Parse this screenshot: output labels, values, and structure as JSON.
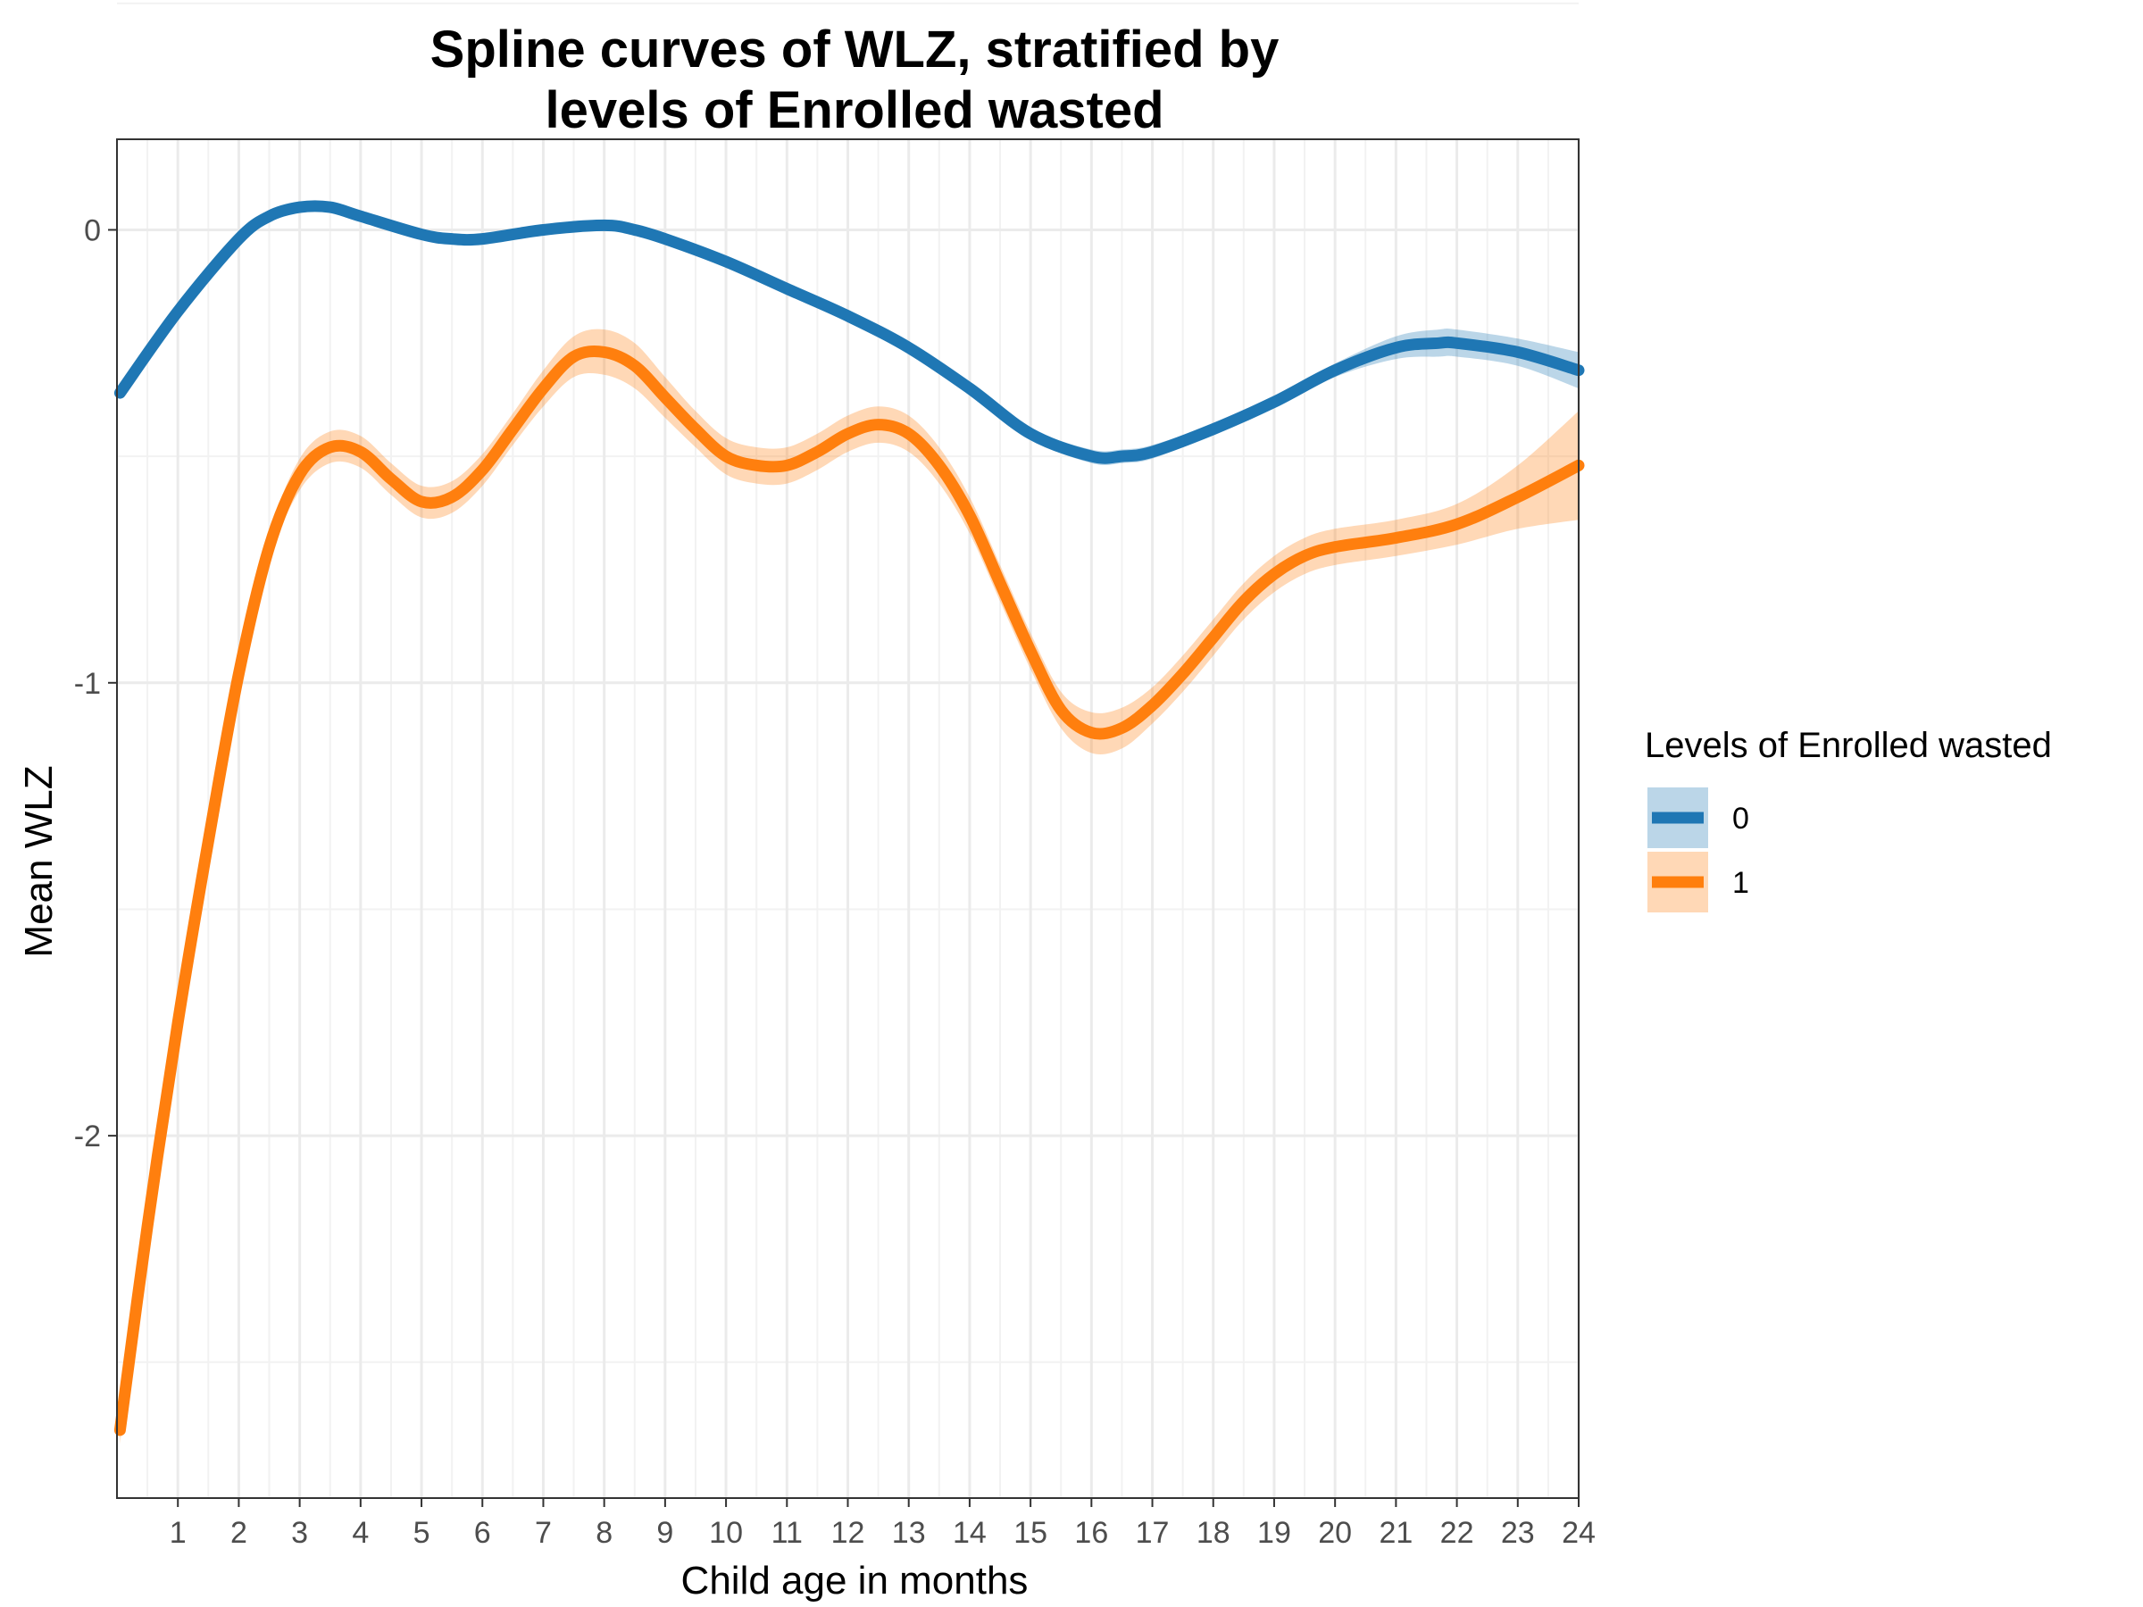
{
  "chart_data": {
    "type": "line",
    "title": "Spline curves of WLZ, stratified by levels of Enrolled wasted",
    "title_lines": [
      "Spline curves of WLZ, stratified by",
      "levels of Enrolled wasted"
    ],
    "xlabel": "Child age in months",
    "ylabel": "Mean WLZ",
    "xlim": [
      0,
      24
    ],
    "ylim": [
      -2.8,
      0.2
    ],
    "xticks": [
      1,
      2,
      3,
      4,
      5,
      6,
      7,
      8,
      9,
      10,
      11,
      12,
      13,
      14,
      15,
      16,
      17,
      18,
      19,
      20,
      21,
      22,
      23,
      24
    ],
    "yticks": [
      0,
      -1,
      -2
    ],
    "ytick_labels": [
      "0",
      "-1",
      "-2"
    ],
    "grid": true,
    "legend": {
      "title": "Levels of Enrolled wasted",
      "position": "right"
    },
    "series": [
      {
        "name": "0",
        "color": "#1F77B4",
        "fill": "#B3D0EA",
        "x": [
          0.05,
          1,
          2,
          2.5,
          3,
          3.5,
          4,
          5,
          5.5,
          6,
          7,
          8,
          8.5,
          9,
          10,
          11,
          12,
          13,
          14,
          15,
          16,
          16.5,
          17,
          18,
          19,
          20,
          21,
          21.7,
          22,
          23,
          24
        ],
        "y": [
          -0.36,
          -0.18,
          -0.02,
          0.03,
          0.05,
          0.05,
          0.03,
          -0.01,
          -0.02,
          -0.02,
          0.0,
          0.01,
          0.0,
          -0.02,
          -0.07,
          -0.13,
          -0.19,
          -0.26,
          -0.35,
          -0.45,
          -0.5,
          -0.5,
          -0.49,
          -0.44,
          -0.38,
          -0.31,
          -0.26,
          -0.25,
          -0.25,
          -0.27,
          -0.31
        ],
        "band": [
          0.01,
          0.01,
          0.01,
          0.01,
          0.01,
          0.01,
          0.01,
          0.01,
          0.01,
          0.01,
          0.01,
          0.01,
          0.01,
          0.01,
          0.01,
          0.01,
          0.01,
          0.01,
          0.01,
          0.012,
          0.015,
          0.015,
          0.015,
          0.012,
          0.012,
          0.015,
          0.025,
          0.03,
          0.03,
          0.03,
          0.04
        ]
      },
      {
        "name": "1",
        "color": "#FF7F0E",
        "fill": "#FDD0AC",
        "x": [
          0.05,
          0.5,
          1,
          1.5,
          2,
          2.5,
          3,
          3.5,
          4,
          4.5,
          5,
          5.5,
          6,
          6.5,
          7,
          7.5,
          8,
          8.5,
          9,
          9.5,
          10,
          10.5,
          11,
          11.5,
          12,
          12.5,
          13,
          13.5,
          14,
          14.5,
          15,
          15.5,
          16,
          16.5,
          17,
          17.5,
          18,
          18.5,
          19,
          19.5,
          20,
          21,
          22,
          23,
          24
        ],
        "y": [
          -2.65,
          -2.2,
          -1.75,
          -1.35,
          -0.98,
          -0.7,
          -0.54,
          -0.48,
          -0.49,
          -0.55,
          -0.6,
          -0.59,
          -0.53,
          -0.44,
          -0.35,
          -0.28,
          -0.27,
          -0.3,
          -0.37,
          -0.44,
          -0.5,
          -0.52,
          -0.52,
          -0.49,
          -0.45,
          -0.43,
          -0.45,
          -0.52,
          -0.63,
          -0.78,
          -0.93,
          -1.06,
          -1.11,
          -1.1,
          -1.05,
          -0.98,
          -0.9,
          -0.82,
          -0.76,
          -0.72,
          -0.7,
          -0.68,
          -0.65,
          -0.59,
          -0.52
        ],
        "band": [
          0.03,
          0.03,
          0.03,
          0.03,
          0.03,
          0.03,
          0.035,
          0.035,
          0.035,
          0.035,
          0.035,
          0.035,
          0.035,
          0.035,
          0.04,
          0.045,
          0.05,
          0.05,
          0.045,
          0.04,
          0.04,
          0.04,
          0.04,
          0.04,
          0.04,
          0.04,
          0.04,
          0.04,
          0.04,
          0.04,
          0.04,
          0.04,
          0.045,
          0.045,
          0.04,
          0.04,
          0.04,
          0.04,
          0.04,
          0.04,
          0.04,
          0.04,
          0.045,
          0.07,
          0.12
        ]
      }
    ]
  }
}
